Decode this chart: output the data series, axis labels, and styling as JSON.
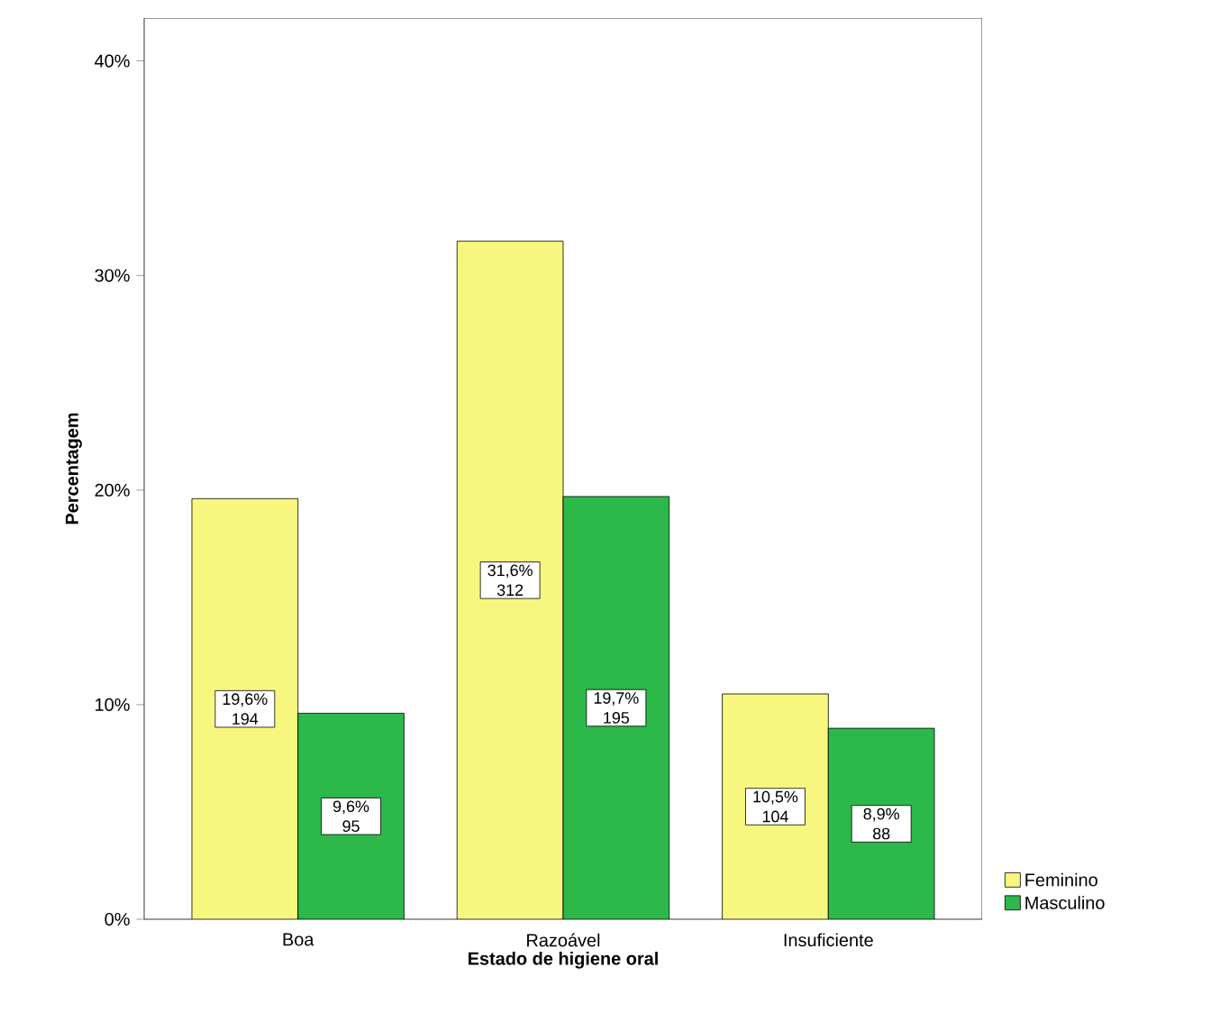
{
  "chart_data": {
    "type": "bar",
    "xlabel": "Estado de higiene oral",
    "ylabel": "Percentagem",
    "categories": [
      "Boa",
      "Razoável",
      "Insuficiente"
    ],
    "series": [
      {
        "name": "Feminino",
        "color": "#f7f77f",
        "values": [
          19.6,
          31.6,
          10.5
        ],
        "value_labels": [
          "19,6% 194",
          "31,6% 312",
          "10,5% 104"
        ]
      },
      {
        "name": "Masculino",
        "color": "#2db84a",
        "values": [
          9.6,
          19.7,
          8.9
        ],
        "value_labels": [
          "9,6% 95",
          "19,7% 195",
          "8,9% 88"
        ]
      }
    ],
    "ylim": [
      0,
      42
    ],
    "yticks": [
      {
        "value": 0,
        "label": "0%"
      },
      {
        "value": 10,
        "label": "10%"
      },
      {
        "value": 20,
        "label": "20%"
      },
      {
        "value": 30,
        "label": "30%"
      },
      {
        "value": 40,
        "label": "40%"
      }
    ],
    "legend": "bottom right"
  }
}
